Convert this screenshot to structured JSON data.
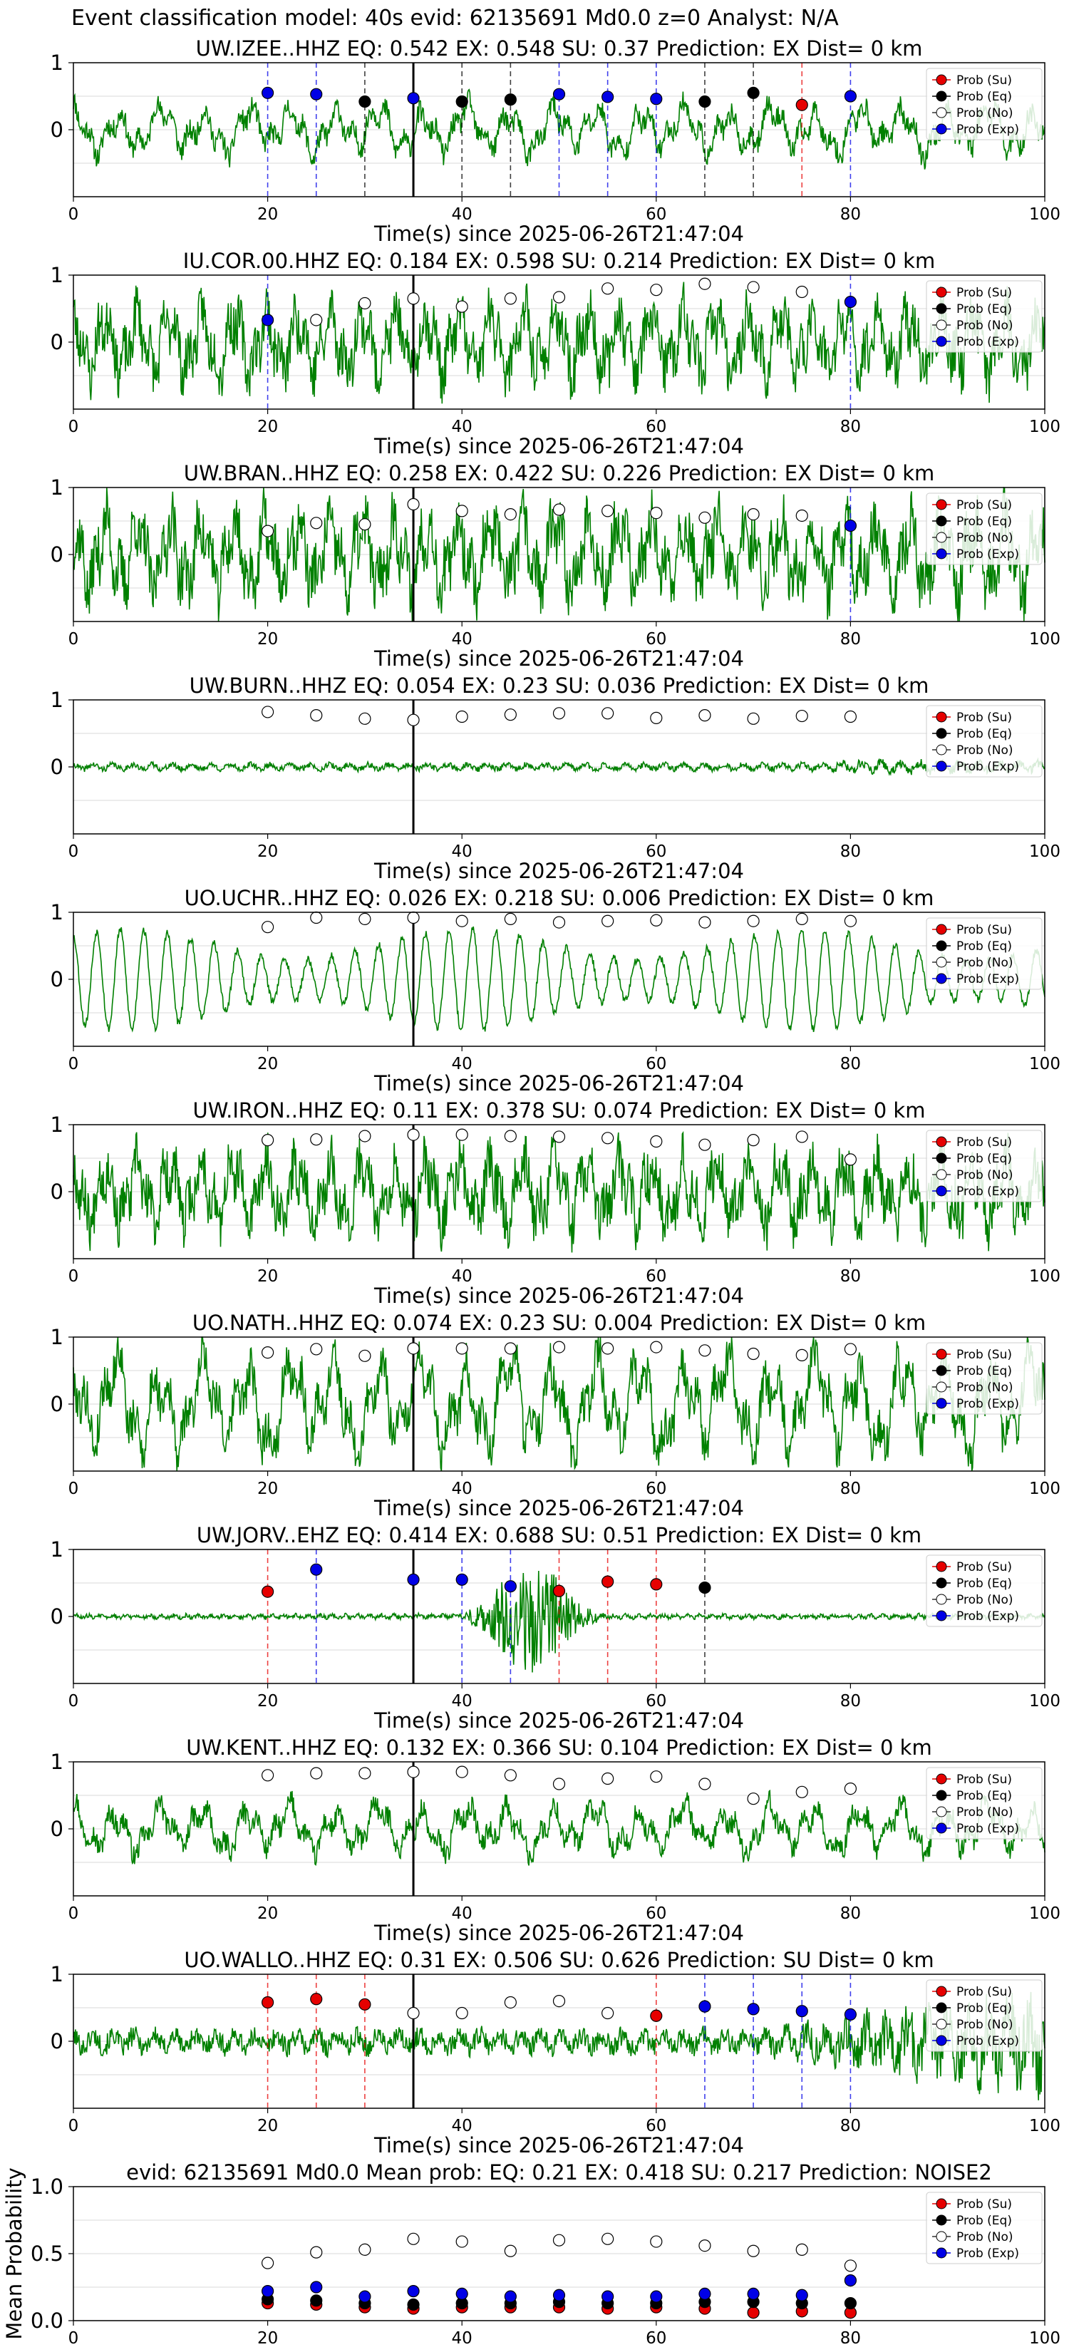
{
  "title": "Event classification model: 40s evid: 62135691 Md0.0 z=0 Analyst: N/A",
  "colors": {
    "waveform": "#008000",
    "su": "#e60000",
    "eq": "#000000",
    "no": "#ffffff",
    "exp": "#0000e6",
    "grid": "#d9d9d9",
    "pick_line": "#000000"
  },
  "legend_labels": [
    "Prob (Su)",
    "Prob (Eq)",
    "Prob (No)",
    "Prob (Exp)"
  ],
  "chart_data": [
    {
      "type": "line",
      "title": "UW.IZEE..HHZ   EQ: 0.542  EX: 0.548  SU: 0.37   Prediction: EX    Dist= 0 km",
      "xlabel": "Time(s) since 2025-06-26T21:47:04",
      "ylabel": "",
      "xlim": [
        0,
        100
      ],
      "ylim": [
        -1,
        1
      ],
      "xticks": [
        0,
        20,
        40,
        60,
        80,
        100
      ],
      "yticks": [
        0,
        1
      ],
      "grid": true,
      "legend": "top-right",
      "pick_time": 35,
      "noise": 0.2,
      "seed": 11,
      "style": "mixed",
      "points": [
        {
          "x": 20,
          "y": 0.55,
          "c": "exp"
        },
        {
          "x": 25,
          "y": 0.53,
          "c": "exp"
        },
        {
          "x": 30,
          "y": 0.42,
          "c": "eq"
        },
        {
          "x": 35,
          "y": 0.47,
          "c": "exp"
        },
        {
          "x": 40,
          "y": 0.42,
          "c": "eq"
        },
        {
          "x": 45,
          "y": 0.45,
          "c": "eq"
        },
        {
          "x": 50,
          "y": 0.53,
          "c": "exp"
        },
        {
          "x": 55,
          "y": 0.49,
          "c": "exp"
        },
        {
          "x": 60,
          "y": 0.46,
          "c": "exp"
        },
        {
          "x": 65,
          "y": 0.42,
          "c": "eq"
        },
        {
          "x": 70,
          "y": 0.55,
          "c": "eq"
        },
        {
          "x": 75,
          "y": 0.37,
          "c": "su"
        },
        {
          "x": 80,
          "y": 0.5,
          "c": "exp"
        }
      ]
    },
    {
      "type": "line",
      "title": "IU.COR.00.HHZ   EQ: 0.184  EX: 0.598  SU: 0.214   Prediction: EX    Dist= 0 km",
      "xlabel": "Time(s) since 2025-06-26T21:47:04",
      "ylabel": "",
      "xlim": [
        0,
        100
      ],
      "ylim": [
        -1,
        1
      ],
      "xticks": [
        0,
        20,
        40,
        60,
        80,
        100
      ],
      "yticks": [
        0,
        1
      ],
      "grid": true,
      "legend": "top-right",
      "pick_time": 35,
      "noise": 0.35,
      "seed": 23,
      "style": "noisy",
      "points": [
        {
          "x": 20,
          "y": 0.33,
          "c": "exp"
        },
        {
          "x": 25,
          "y": 0.33,
          "c": "no"
        },
        {
          "x": 30,
          "y": 0.58,
          "c": "no"
        },
        {
          "x": 35,
          "y": 0.65,
          "c": "no"
        },
        {
          "x": 40,
          "y": 0.53,
          "c": "no"
        },
        {
          "x": 45,
          "y": 0.65,
          "c": "no"
        },
        {
          "x": 50,
          "y": 0.67,
          "c": "no"
        },
        {
          "x": 55,
          "y": 0.8,
          "c": "no"
        },
        {
          "x": 60,
          "y": 0.78,
          "c": "no"
        },
        {
          "x": 65,
          "y": 0.87,
          "c": "no"
        },
        {
          "x": 70,
          "y": 0.82,
          "c": "no"
        },
        {
          "x": 75,
          "y": 0.75,
          "c": "no"
        },
        {
          "x": 80,
          "y": 0.6,
          "c": "exp"
        }
      ]
    },
    {
      "type": "line",
      "title": "UW.BRAN..HHZ   EQ: 0.258  EX: 0.422  SU: 0.226   Prediction: EX    Dist= 0 km",
      "xlabel": "Time(s) since 2025-06-26T21:47:04",
      "ylabel": "",
      "xlim": [
        0,
        100
      ],
      "ylim": [
        -1,
        1
      ],
      "xticks": [
        0,
        20,
        40,
        60,
        80,
        100
      ],
      "yticks": [
        0,
        1
      ],
      "grid": true,
      "legend": "top-right",
      "pick_time": 35,
      "noise": 0.4,
      "seed": 37,
      "style": "noisy",
      "points": [
        {
          "x": 20,
          "y": 0.35,
          "c": "no"
        },
        {
          "x": 25,
          "y": 0.47,
          "c": "no"
        },
        {
          "x": 30,
          "y": 0.45,
          "c": "no"
        },
        {
          "x": 35,
          "y": 0.75,
          "c": "no"
        },
        {
          "x": 40,
          "y": 0.65,
          "c": "no"
        },
        {
          "x": 45,
          "y": 0.6,
          "c": "no"
        },
        {
          "x": 50,
          "y": 0.67,
          "c": "no"
        },
        {
          "x": 55,
          "y": 0.65,
          "c": "no"
        },
        {
          "x": 60,
          "y": 0.62,
          "c": "no"
        },
        {
          "x": 65,
          "y": 0.55,
          "c": "no"
        },
        {
          "x": 70,
          "y": 0.6,
          "c": "no"
        },
        {
          "x": 75,
          "y": 0.58,
          "c": "no"
        },
        {
          "x": 80,
          "y": 0.43,
          "c": "exp"
        }
      ]
    },
    {
      "type": "line",
      "title": "UW.BURN..HHZ   EQ: 0.054  EX: 0.23  SU: 0.036   Prediction: EX    Dist= 0 km",
      "xlabel": "Time(s) since 2025-06-26T21:47:04",
      "ylabel": "",
      "xlim": [
        0,
        100
      ],
      "ylim": [
        -1,
        1
      ],
      "xticks": [
        0,
        20,
        40,
        60,
        80,
        100
      ],
      "yticks": [
        0,
        1
      ],
      "grid": true,
      "legend": "top-right",
      "pick_time": 35,
      "noise": 0.07,
      "seed": 41,
      "style": "quiet",
      "points": [
        {
          "x": 20,
          "y": 0.82,
          "c": "no"
        },
        {
          "x": 25,
          "y": 0.77,
          "c": "no"
        },
        {
          "x": 30,
          "y": 0.72,
          "c": "no"
        },
        {
          "x": 35,
          "y": 0.7,
          "c": "no"
        },
        {
          "x": 40,
          "y": 0.75,
          "c": "no"
        },
        {
          "x": 45,
          "y": 0.78,
          "c": "no"
        },
        {
          "x": 50,
          "y": 0.8,
          "c": "no"
        },
        {
          "x": 55,
          "y": 0.8,
          "c": "no"
        },
        {
          "x": 60,
          "y": 0.73,
          "c": "no"
        },
        {
          "x": 65,
          "y": 0.77,
          "c": "no"
        },
        {
          "x": 70,
          "y": 0.72,
          "c": "no"
        },
        {
          "x": 75,
          "y": 0.76,
          "c": "no"
        },
        {
          "x": 80,
          "y": 0.75,
          "c": "no"
        }
      ]
    },
    {
      "type": "line",
      "title": "UO.UCHR..HHZ   EQ: 0.026  EX: 0.218  SU: 0.006   Prediction: EX    Dist= 0 km",
      "xlabel": "Time(s) since 2025-06-26T21:47:04",
      "ylabel": "",
      "xlim": [
        0,
        100
      ],
      "ylim": [
        -1,
        1
      ],
      "xticks": [
        0,
        20,
        40,
        60,
        80,
        100
      ],
      "yticks": [
        0,
        1
      ],
      "grid": true,
      "legend": "top-right",
      "pick_time": 35,
      "noise": 0.5,
      "seed": 53,
      "style": "sine",
      "points": [
        {
          "x": 20,
          "y": 0.78,
          "c": "no"
        },
        {
          "x": 25,
          "y": 0.92,
          "c": "no"
        },
        {
          "x": 30,
          "y": 0.9,
          "c": "no"
        },
        {
          "x": 35,
          "y": 0.92,
          "c": "no"
        },
        {
          "x": 40,
          "y": 0.87,
          "c": "no"
        },
        {
          "x": 45,
          "y": 0.9,
          "c": "no"
        },
        {
          "x": 50,
          "y": 0.85,
          "c": "no"
        },
        {
          "x": 55,
          "y": 0.87,
          "c": "no"
        },
        {
          "x": 60,
          "y": 0.88,
          "c": "no"
        },
        {
          "x": 65,
          "y": 0.85,
          "c": "no"
        },
        {
          "x": 70,
          "y": 0.87,
          "c": "no"
        },
        {
          "x": 75,
          "y": 0.9,
          "c": "no"
        },
        {
          "x": 80,
          "y": 0.87,
          "c": "no"
        }
      ]
    },
    {
      "type": "line",
      "title": "UW.IRON..HHZ   EQ: 0.11  EX: 0.378  SU: 0.074   Prediction: EX    Dist= 0 km",
      "xlabel": "Time(s) since 2025-06-26T21:47:04",
      "ylabel": "",
      "xlim": [
        0,
        100
      ],
      "ylim": [
        -1,
        1
      ],
      "xticks": [
        0,
        20,
        40,
        60,
        80,
        100
      ],
      "yticks": [
        0,
        1
      ],
      "grid": true,
      "legend": "top-right",
      "pick_time": 35,
      "noise": 0.35,
      "seed": 67,
      "style": "noisy",
      "points": [
        {
          "x": 20,
          "y": 0.77,
          "c": "no"
        },
        {
          "x": 25,
          "y": 0.78,
          "c": "no"
        },
        {
          "x": 30,
          "y": 0.83,
          "c": "no"
        },
        {
          "x": 35,
          "y": 0.85,
          "c": "no"
        },
        {
          "x": 40,
          "y": 0.85,
          "c": "no"
        },
        {
          "x": 45,
          "y": 0.83,
          "c": "no"
        },
        {
          "x": 50,
          "y": 0.82,
          "c": "no"
        },
        {
          "x": 55,
          "y": 0.8,
          "c": "no"
        },
        {
          "x": 60,
          "y": 0.75,
          "c": "no"
        },
        {
          "x": 65,
          "y": 0.7,
          "c": "no"
        },
        {
          "x": 70,
          "y": 0.77,
          "c": "no"
        },
        {
          "x": 75,
          "y": 0.82,
          "c": "no"
        },
        {
          "x": 80,
          "y": 0.48,
          "c": "no"
        }
      ]
    },
    {
      "type": "line",
      "title": "UO.NATH..HHZ   EQ: 0.074  EX: 0.23  SU: 0.004   Prediction: EX    Dist= 0 km",
      "xlabel": "Time(s) since 2025-06-26T21:47:04",
      "ylabel": "",
      "xlim": [
        0,
        100
      ],
      "ylim": [
        -1,
        1
      ],
      "xticks": [
        0,
        20,
        40,
        60,
        80,
        100
      ],
      "yticks": [
        0,
        1
      ],
      "grid": true,
      "legend": "top-right",
      "pick_time": 35,
      "noise": 0.4,
      "seed": 79,
      "style": "mixed",
      "points": [
        {
          "x": 20,
          "y": 0.77,
          "c": "no"
        },
        {
          "x": 25,
          "y": 0.82,
          "c": "no"
        },
        {
          "x": 30,
          "y": 0.72,
          "c": "no"
        },
        {
          "x": 35,
          "y": 0.83,
          "c": "no"
        },
        {
          "x": 40,
          "y": 0.83,
          "c": "no"
        },
        {
          "x": 45,
          "y": 0.83,
          "c": "no"
        },
        {
          "x": 50,
          "y": 0.85,
          "c": "no"
        },
        {
          "x": 55,
          "y": 0.83,
          "c": "no"
        },
        {
          "x": 60,
          "y": 0.85,
          "c": "no"
        },
        {
          "x": 65,
          "y": 0.8,
          "c": "no"
        },
        {
          "x": 70,
          "y": 0.75,
          "c": "no"
        },
        {
          "x": 75,
          "y": 0.73,
          "c": "no"
        },
        {
          "x": 80,
          "y": 0.82,
          "c": "no"
        }
      ]
    },
    {
      "type": "line",
      "title": "UW.JORV..EHZ   EQ: 0.414  EX: 0.688  SU: 0.51   Prediction: EX    Dist= 0 km",
      "xlabel": "Time(s) since 2025-06-26T21:47:04",
      "ylabel": "",
      "xlim": [
        0,
        100
      ],
      "ylim": [
        -1,
        1
      ],
      "xticks": [
        0,
        20,
        40,
        60,
        80,
        100
      ],
      "yticks": [
        0,
        1
      ],
      "grid": true,
      "legend": "top-right",
      "pick_time": 35,
      "noise": 0.02,
      "seed": 83,
      "style": "burst",
      "points": [
        {
          "x": 20,
          "y": 0.37,
          "c": "su"
        },
        {
          "x": 25,
          "y": 0.7,
          "c": "exp"
        },
        {
          "x": 35,
          "y": 0.55,
          "c": "exp"
        },
        {
          "x": 40,
          "y": 0.55,
          "c": "exp"
        },
        {
          "x": 45,
          "y": 0.45,
          "c": "exp"
        },
        {
          "x": 50,
          "y": 0.38,
          "c": "su"
        },
        {
          "x": 55,
          "y": 0.52,
          "c": "su"
        },
        {
          "x": 60,
          "y": 0.48,
          "c": "su"
        },
        {
          "x": 65,
          "y": 0.43,
          "c": "eq"
        }
      ]
    },
    {
      "type": "line",
      "title": "UW.KENT..HHZ   EQ: 0.132  EX: 0.366  SU: 0.104   Prediction: EX    Dist= 0 km",
      "xlabel": "Time(s) since 2025-06-26T21:47:04",
      "ylabel": "",
      "xlim": [
        0,
        100
      ],
      "ylim": [
        -1,
        1
      ],
      "xticks": [
        0,
        20,
        40,
        60,
        80,
        100
      ],
      "yticks": [
        0,
        1
      ],
      "grid": true,
      "legend": "top-right",
      "pick_time": 35,
      "noise": 0.2,
      "seed": 97,
      "style": "mixed",
      "points": [
        {
          "x": 20,
          "y": 0.8,
          "c": "no"
        },
        {
          "x": 25,
          "y": 0.83,
          "c": "no"
        },
        {
          "x": 30,
          "y": 0.83,
          "c": "no"
        },
        {
          "x": 35,
          "y": 0.85,
          "c": "no"
        },
        {
          "x": 40,
          "y": 0.85,
          "c": "no"
        },
        {
          "x": 45,
          "y": 0.8,
          "c": "no"
        },
        {
          "x": 50,
          "y": 0.67,
          "c": "no"
        },
        {
          "x": 55,
          "y": 0.75,
          "c": "no"
        },
        {
          "x": 60,
          "y": 0.78,
          "c": "no"
        },
        {
          "x": 65,
          "y": 0.67,
          "c": "no"
        },
        {
          "x": 70,
          "y": 0.45,
          "c": "no"
        },
        {
          "x": 75,
          "y": 0.55,
          "c": "no"
        },
        {
          "x": 80,
          "y": 0.6,
          "c": "no"
        }
      ]
    },
    {
      "type": "line",
      "title": "UO.WALLO..HHZ   EQ: 0.31  EX: 0.506  SU: 0.626   Prediction: SU    Dist= 0 km",
      "xlabel": "Time(s) since 2025-06-26T21:47:04",
      "ylabel": "",
      "xlim": [
        0,
        100
      ],
      "ylim": [
        -1,
        1
      ],
      "xticks": [
        0,
        20,
        40,
        60,
        80,
        100
      ],
      "yticks": [
        0,
        1
      ],
      "grid": true,
      "legend": "top-right",
      "pick_time": 35,
      "noise": 0.25,
      "seed": 101,
      "style": "growing",
      "points": [
        {
          "x": 20,
          "y": 0.58,
          "c": "su"
        },
        {
          "x": 25,
          "y": 0.63,
          "c": "su"
        },
        {
          "x": 30,
          "y": 0.55,
          "c": "su"
        },
        {
          "x": 35,
          "y": 0.42,
          "c": "no"
        },
        {
          "x": 40,
          "y": 0.42,
          "c": "no"
        },
        {
          "x": 45,
          "y": 0.58,
          "c": "no"
        },
        {
          "x": 50,
          "y": 0.6,
          "c": "no"
        },
        {
          "x": 55,
          "y": 0.42,
          "c": "no"
        },
        {
          "x": 60,
          "y": 0.38,
          "c": "su"
        },
        {
          "x": 65,
          "y": 0.52,
          "c": "exp"
        },
        {
          "x": 70,
          "y": 0.48,
          "c": "exp"
        },
        {
          "x": 75,
          "y": 0.45,
          "c": "exp"
        },
        {
          "x": 80,
          "y": 0.4,
          "c": "exp"
        }
      ]
    },
    {
      "type": "scatter",
      "title": "evid: 62135691  Md0.0   Mean prob:   EQ: 0.21  EX: 0.418  SU: 0.217   Prediction: NOISE2",
      "xlabel": "",
      "ylabel": "Mean Probability",
      "xlim": [
        0,
        100
      ],
      "ylim": [
        0,
        1
      ],
      "xticks": [
        0,
        20,
        40,
        60,
        80,
        100
      ],
      "yticks": [
        0.0,
        0.5,
        1.0
      ],
      "yticklabels": [
        "0.0",
        "0.5",
        "1.0"
      ],
      "grid": true,
      "legend": "top-right",
      "x": [
        20,
        25,
        30,
        35,
        40,
        45,
        50,
        55,
        60,
        65,
        70,
        75,
        80
      ],
      "series": [
        {
          "name": "Prob (Su)",
          "c": "su",
          "values": [
            0.13,
            0.12,
            0.1,
            0.09,
            0.1,
            0.1,
            0.1,
            0.09,
            0.1,
            0.09,
            0.06,
            0.07,
            0.06
          ]
        },
        {
          "name": "Prob (Eq)",
          "c": "eq",
          "values": [
            0.16,
            0.15,
            0.13,
            0.12,
            0.13,
            0.13,
            0.14,
            0.13,
            0.13,
            0.14,
            0.14,
            0.13,
            0.13
          ]
        },
        {
          "name": "Prob (No)",
          "c": "no",
          "values": [
            0.43,
            0.51,
            0.53,
            0.61,
            0.59,
            0.52,
            0.6,
            0.61,
            0.59,
            0.56,
            0.52,
            0.53,
            0.41
          ]
        },
        {
          "name": "Prob (Exp)",
          "c": "exp",
          "values": [
            0.22,
            0.25,
            0.18,
            0.22,
            0.2,
            0.18,
            0.19,
            0.18,
            0.18,
            0.2,
            0.2,
            0.19,
            0.3
          ]
        }
      ]
    }
  ]
}
